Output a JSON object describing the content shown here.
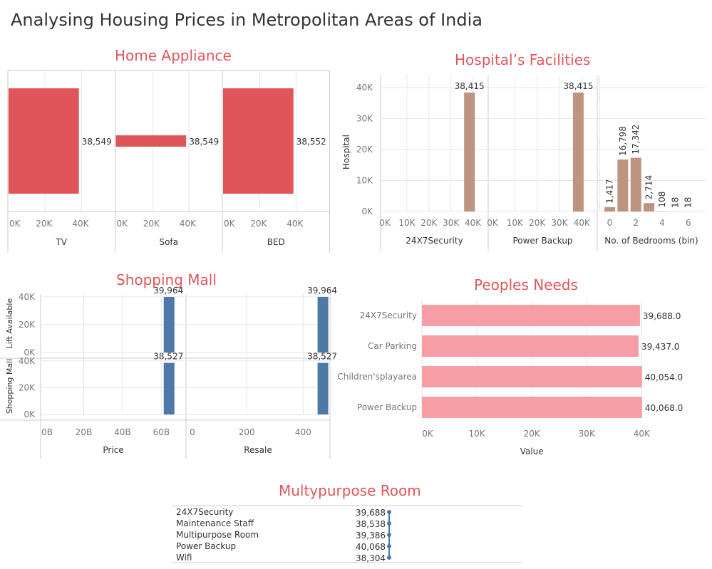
{
  "dashboard_title": "Analysing Housing Prices in Metropolitan Areas of India",
  "colors": {
    "title_red": "#e05559",
    "bar_red": "#e05559",
    "bar_tan": "#bc947f",
    "bar_blue": "#4e79a7",
    "bar_pink": "#f79da5",
    "grid": "#e6e6e6",
    "axis": "#cccccc"
  },
  "chart_data": [
    {
      "id": "home_appliance",
      "type": "bar",
      "orientation": "horizontal",
      "title": "Home Appliance",
      "panels": [
        {
          "xlabel": "TV",
          "value": 38549,
          "label": "38,549"
        },
        {
          "xlabel": "Sofa",
          "value": 38549,
          "label": "38,549"
        },
        {
          "xlabel": "BED",
          "value": 38552,
          "label": "38,552"
        }
      ],
      "ticks": [
        "0K",
        "20K",
        "40K"
      ],
      "xlim": [
        0,
        58000
      ]
    },
    {
      "id": "hospital_facilities",
      "type": "bar",
      "title": "Hospital’s Facilities",
      "ylabel": "Hospital",
      "ylim": [
        0,
        43000
      ],
      "yticks": [
        "0K",
        "10K",
        "20K",
        "30K",
        "40K"
      ],
      "panels": [
        {
          "xlabel": "24X7Security",
          "xticks": [
            "0K",
            "10K",
            "20K",
            "30K",
            "40K"
          ],
          "xlim": [
            0,
            45000
          ],
          "bars": [
            {
              "x": 38415,
              "value": 38415,
              "label": "38,415"
            }
          ]
        },
        {
          "xlabel": "Power Backup",
          "xticks": [
            "0K",
            "10K",
            "20K",
            "30K",
            "40K"
          ],
          "xlim": [
            0,
            45000
          ],
          "bars": [
            {
              "x": 38415,
              "value": 38415,
              "label": "38,415"
            }
          ]
        },
        {
          "xlabel": "No. of Bedrooms (bin)",
          "xticks": [
            "0",
            "2",
            "4",
            "6"
          ],
          "xlim": [
            -0.3,
            7
          ],
          "bars": [
            {
              "x": 0,
              "value": 1417,
              "label": "1,417"
            },
            {
              "x": 1,
              "value": 16798,
              "label": "16,798"
            },
            {
              "x": 2,
              "value": 17342,
              "label": "17,342"
            },
            {
              "x": 3,
              "value": 2714,
              "label": "2,714"
            },
            {
              "x": 4,
              "value": 108,
              "label": "108"
            },
            {
              "x": 5,
              "value": 18,
              "label": "18"
            },
            {
              "x": 6,
              "value": 18,
              "label": "18"
            }
          ]
        }
      ]
    },
    {
      "id": "shopping_mall",
      "type": "bar",
      "title": "Shopping Mall",
      "rows": [
        {
          "ylabel": "Lift Available",
          "value": 39964,
          "label": "39,964"
        },
        {
          "ylabel": "Shopping Mall",
          "value": 38527,
          "label": "38,527"
        }
      ],
      "yticks": [
        "0K",
        "20K",
        "40K"
      ],
      "ylim": [
        0,
        42000
      ],
      "columns": [
        {
          "xlabel": "Price",
          "xticks": [
            "0B",
            "20B",
            "40B",
            "60B"
          ],
          "xlim": [
            0,
            72
          ],
          "bar_x": 64
        },
        {
          "xlabel": "Resale",
          "xticks": [
            "0",
            "200",
            "400"
          ],
          "xlim": [
            0,
            490
          ],
          "bar_x": 470
        }
      ]
    },
    {
      "id": "peoples_needs",
      "type": "bar",
      "orientation": "horizontal",
      "title": "Peoples Needs",
      "xlabel": "Value",
      "xticks": [
        "0K",
        "10K",
        "20K",
        "30K",
        "40K"
      ],
      "xlim": [
        0,
        48000
      ],
      "categories": [
        "24X7Security",
        "Car Parking",
        "Children'splayarea",
        "Power Backup"
      ],
      "values": [
        39688,
        39437,
        40054,
        40068
      ],
      "labels": [
        "39,688.0",
        "39,437.0",
        "40,054.0",
        "40,068.0"
      ]
    },
    {
      "id": "multypurpose_room",
      "type": "table",
      "title": "Multypurpose Room",
      "categories": [
        "24X7Security",
        "Maintenance Staff",
        "Multipurpose Room",
        "Power Backup",
        "Wifi"
      ],
      "values": [
        39688,
        38538,
        39386,
        40068,
        38304
      ],
      "labels": [
        "39,688",
        "38,538",
        "39,386",
        "40,068",
        "38,304"
      ]
    }
  ]
}
